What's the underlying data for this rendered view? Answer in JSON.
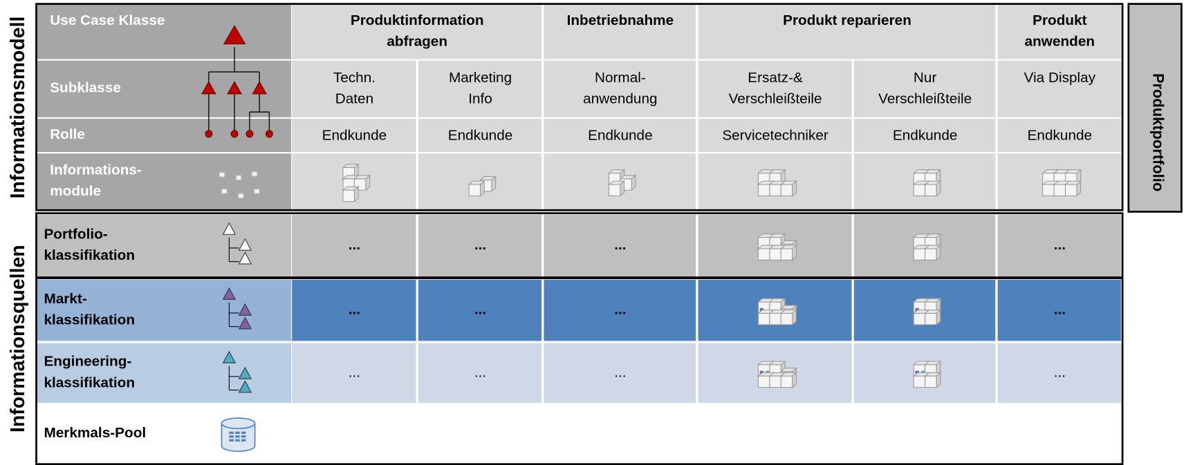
{
  "side_labels": {
    "model": "Informationsmodell",
    "sources": "Informationsquellen"
  },
  "model_rows": [
    [
      "Use Case Klasse"
    ],
    [
      "Subklasse"
    ],
    [
      "Rolle"
    ],
    [
      "Informations-",
      "module"
    ]
  ],
  "use_cases": [
    [
      "Produktinformation",
      "abfragen"
    ],
    [
      "Inbetriebnahme"
    ],
    [
      "Produkt reparieren"
    ],
    [
      "Produkt",
      "anwenden"
    ]
  ],
  "subclasses": [
    [
      "Techn.",
      "Daten"
    ],
    [
      "Marketing",
      "Info"
    ],
    [
      "Normal-",
      "anwendung"
    ],
    [
      "Ersatz-&",
      "Verschleißteile"
    ],
    [
      "Nur",
      "Verschleißteile"
    ],
    [
      "Via Display"
    ]
  ],
  "roles": [
    "Endkunde",
    "Endkunde",
    "Endkunde",
    "Servicetechniker",
    "Endkunde",
    "Endkunde"
  ],
  "sources": [
    {
      "label": [
        "Portfolio-",
        "klassifikation"
      ],
      "cells": [
        "...",
        "...",
        "...",
        null,
        null,
        "..."
      ]
    },
    {
      "label": [
        "Markt-",
        "klassifikation"
      ],
      "cells": [
        "...",
        "...",
        "...",
        null,
        null,
        "..."
      ]
    },
    {
      "label": [
        "Engineering-",
        "klassifikation"
      ],
      "cells": [
        "...",
        "...",
        "...",
        null,
        null,
        "..."
      ]
    },
    {
      "label": [
        "Merkmals-Pool"
      ]
    }
  ],
  "portfolio_box": "Produktportfolio"
}
